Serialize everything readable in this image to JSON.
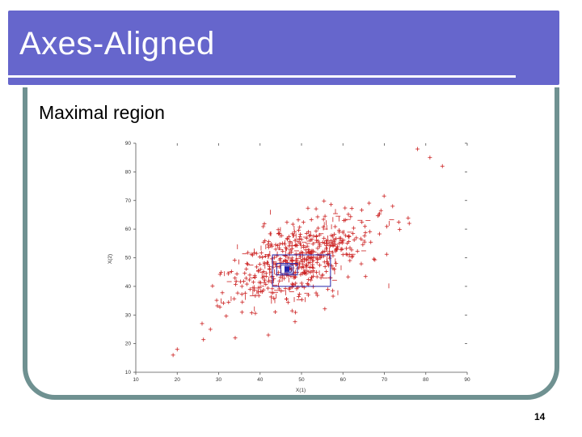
{
  "slide": {
    "title": "Axes-Aligned",
    "subtitle": "Maximal region",
    "page_number": "14",
    "banner_color": "#6666cc",
    "frame_color": "#6f9191"
  },
  "chart_data": {
    "type": "scatter",
    "xlabel": "X(1)",
    "ylabel": "X(2)",
    "xlim": [
      10,
      90
    ],
    "ylim": [
      10,
      90
    ],
    "xticks": [
      "10",
      "20",
      "30",
      "40",
      "50",
      "60",
      "70",
      "80",
      "90"
    ],
    "yticks": [
      "10",
      "20",
      "30",
      "40",
      "50",
      "60",
      "70",
      "80",
      "90"
    ],
    "marker_color": "#cc2222",
    "region_color": "#2222aa",
    "points_summary": "dense elliptical cloud centred near (48, 48), roughly spanning x 20-85 and y 17-87",
    "regions": [
      {
        "x": [
          43,
          57
        ],
        "y": [
          40,
          51
        ]
      },
      {
        "x": [
          44,
          49
        ],
        "y": [
          44,
          48
        ]
      },
      {
        "x": [
          45,
          48
        ],
        "y": [
          44.5,
          47.5
        ]
      },
      {
        "x": [
          46,
          47.5
        ],
        "y": [
          45,
          47
        ]
      }
    ],
    "center_point": {
      "x": 46.5,
      "y": 46
    }
  }
}
